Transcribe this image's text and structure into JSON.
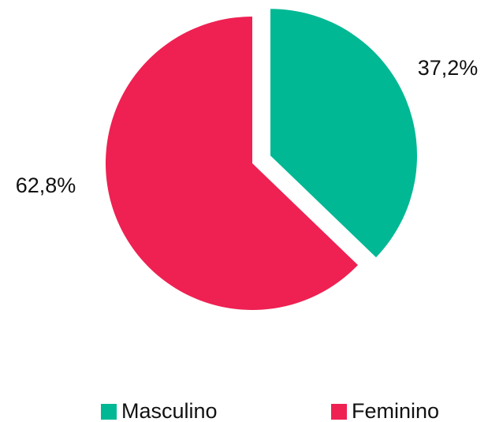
{
  "chart_data": {
    "type": "pie",
    "categories": [
      "Masculino",
      "Feminino"
    ],
    "values": [
      37.2,
      62.8
    ],
    "value_labels": [
      "37,2%",
      "62,8%"
    ],
    "colors": [
      "#00b894",
      "#ee2152"
    ],
    "legend": "bottom"
  }
}
